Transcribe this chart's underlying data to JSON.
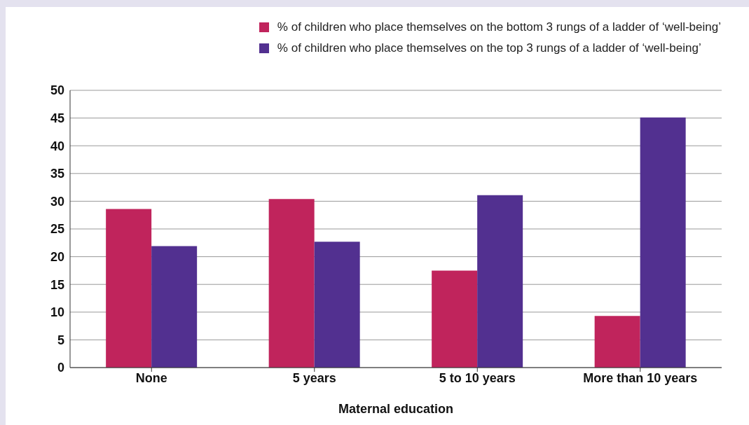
{
  "chart_data": {
    "type": "bar",
    "xlabel": "Maternal education",
    "categories": [
      "None",
      "5 years",
      "5 to 10 years",
      "More than 10 years"
    ],
    "series": [
      {
        "name": "% of children who place themselves on the bottom 3 rungs of a ladder of ‘well-being’",
        "color": "#c0245c",
        "values": [
          28.6,
          30.4,
          17.5,
          9.3
        ]
      },
      {
        "name": "% of children who place themselves on the top 3 rungs of a ladder of ‘well-being’",
        "color": "#523090",
        "values": [
          21.9,
          22.7,
          31.1,
          45.1
        ]
      }
    ],
    "ylim": [
      0,
      50
    ],
    "yticks": [
      0,
      5,
      10,
      15,
      20,
      25,
      30,
      35,
      40,
      45,
      50
    ],
    "grid": "y",
    "legend": "top right"
  }
}
